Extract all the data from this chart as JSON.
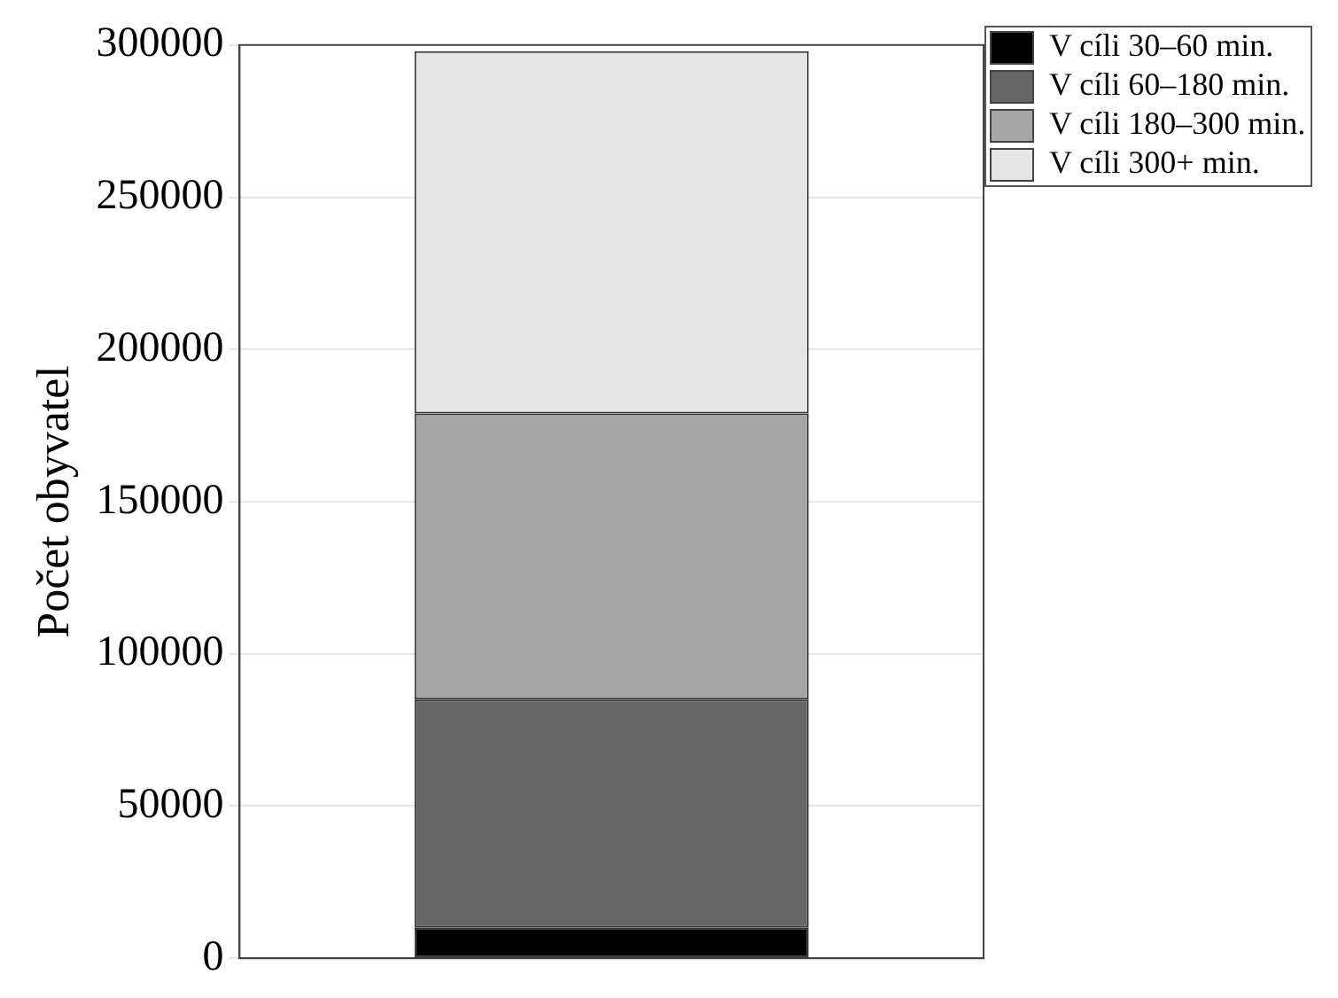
{
  "chart_data": {
    "type": "bar",
    "ylabel": "Počet obyvatel",
    "categories": [
      null
    ],
    "stacked": true,
    "series": [
      {
        "name": "V cíli 30–60 min.",
        "color": "#000000",
        "values": [
          10000
        ]
      },
      {
        "name": "V cíli 60–180 min.",
        "color": "#666666",
        "values": [
          75000
        ]
      },
      {
        "name": "V cíli 180–300 min.",
        "color": "#a6a6a6",
        "values": [
          94000
        ]
      },
      {
        "name": "V cíli 300+ min.",
        "color": "#e5e5e5",
        "values": [
          119000
        ]
      }
    ],
    "ylim": [
      0,
      300000
    ],
    "yticks": [
      0,
      50000,
      100000,
      150000,
      200000,
      250000,
      300000
    ],
    "grid": "y",
    "legend": "top right",
    "tick_labels": "y"
  }
}
